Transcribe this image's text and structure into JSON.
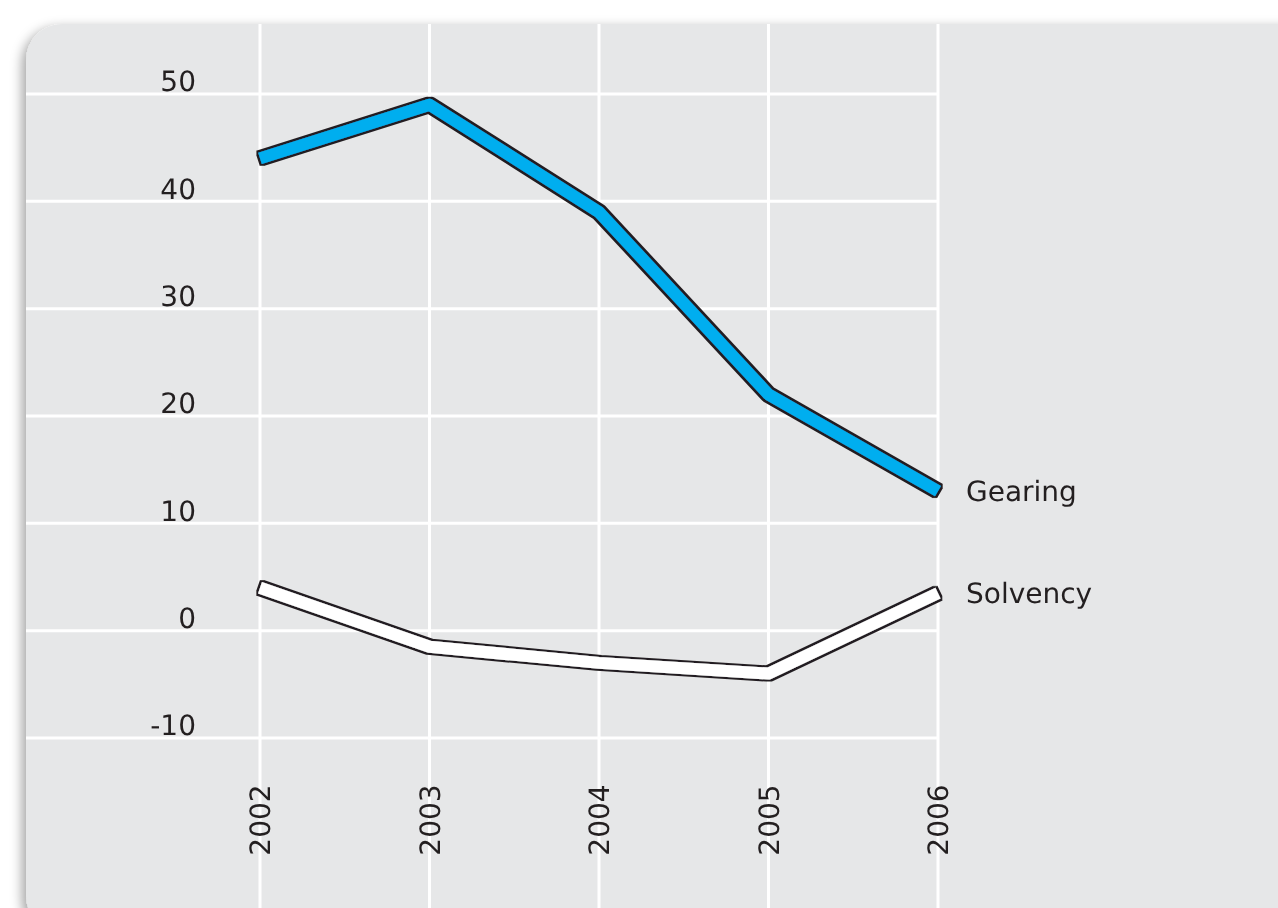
{
  "chart_data": {
    "type": "line",
    "categories": [
      "2002",
      "2003",
      "2004",
      "2005",
      "2006"
    ],
    "series": [
      {
        "name": "Gearing",
        "color": "#00aeef",
        "values": [
          44,
          49,
          39,
          22,
          13
        ]
      },
      {
        "name": "Solvency",
        "color": "#ffffff",
        "values": [
          4,
          -1.5,
          -3,
          -4,
          3.5
        ]
      }
    ],
    "ylim": [
      -10,
      50
    ],
    "yticks": [
      -10,
      0,
      10,
      20,
      30,
      40,
      50
    ],
    "grid": true,
    "marker": "none",
    "line_style": "solid"
  }
}
